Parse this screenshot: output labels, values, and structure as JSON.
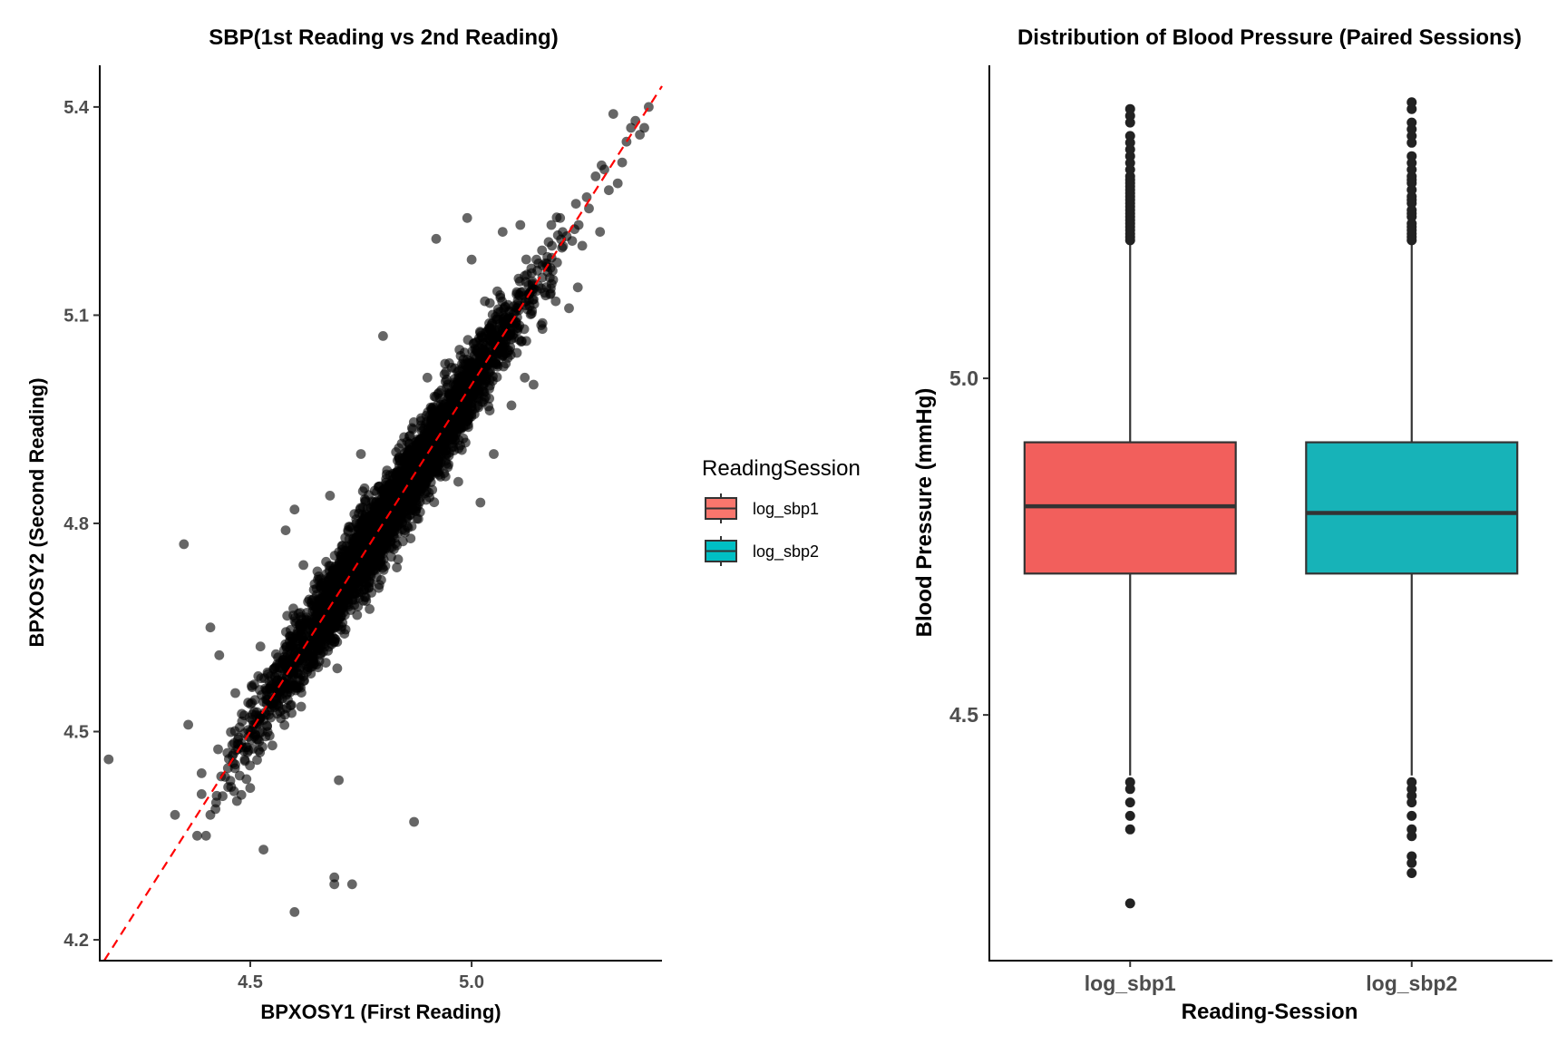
{
  "chart_data": [
    {
      "type": "scatter",
      "title": "SBP(1st Reading vs 2nd Reading)",
      "xlabel": "BPXOSY1 (First Reading)",
      "ylabel": "BPXOSY2 (Second Reading)",
      "xlim": [
        4.16,
        5.43
      ],
      "ylim": [
        4.17,
        5.46
      ],
      "xticks": [
        4.5,
        5.0
      ],
      "xtick_labels": [
        "4.5",
        "5.0"
      ],
      "yticks": [
        4.2,
        4.5,
        4.8,
        5.1,
        5.4
      ],
      "ytick_labels": [
        "4.2",
        "4.5",
        "4.8",
        "5.1",
        "5.4"
      ],
      "reference_line": {
        "style": "dashed",
        "color": "#ff0000",
        "slope": 1,
        "intercept": 0
      },
      "point_color": "#000000",
      "point_alpha": 0.6,
      "grid": false,
      "bulk": {
        "count": 3600,
        "x_range": [
          4.42,
          5.3
        ],
        "x_center": 4.82,
        "x_sd": 0.15,
        "residual_sd": 0.028
      },
      "points": [
        [
          4.18,
          4.46
        ],
        [
          4.33,
          4.38
        ],
        [
          4.35,
          4.77
        ],
        [
          4.38,
          4.35
        ],
        [
          4.39,
          4.41
        ],
        [
          4.4,
          4.35
        ],
        [
          4.41,
          4.38
        ],
        [
          4.39,
          4.44
        ],
        [
          4.41,
          4.65
        ],
        [
          4.43,
          4.61
        ],
        [
          4.36,
          4.51
        ],
        [
          4.45,
          4.42
        ],
        [
          4.47,
          4.4
        ],
        [
          4.53,
          4.33
        ],
        [
          4.6,
          4.24
        ],
        [
          4.69,
          4.29
        ],
        [
          4.69,
          4.28
        ],
        [
          4.73,
          4.28
        ],
        [
          4.7,
          4.43
        ],
        [
          4.87,
          4.37
        ],
        [
          4.6,
          4.82
        ],
        [
          4.58,
          4.79
        ],
        [
          4.68,
          4.84
        ],
        [
          4.76,
          4.81
        ],
        [
          4.8,
          5.07
        ],
        [
          4.83,
          4.87
        ],
        [
          4.92,
          4.93
        ],
        [
          4.94,
          5.03
        ],
        [
          4.9,
          5.01
        ],
        [
          4.97,
          4.86
        ],
        [
          5.04,
          4.98
        ],
        [
          5.05,
          4.9
        ],
        [
          5.02,
          4.83
        ],
        [
          5.09,
          4.97
        ],
        [
          5.14,
          5.0
        ],
        [
          5.12,
          5.01
        ],
        [
          5.16,
          5.08
        ],
        [
          5.19,
          5.12
        ],
        [
          5.22,
          5.11
        ],
        [
          5.24,
          5.14
        ],
        [
          5.17,
          5.17
        ],
        [
          5.0,
          5.18
        ],
        [
          4.99,
          5.24
        ],
        [
          4.92,
          5.21
        ],
        [
          5.07,
          5.22
        ],
        [
          5.11,
          5.23
        ],
        [
          5.18,
          5.23
        ],
        [
          5.2,
          5.24
        ],
        [
          5.25,
          5.2
        ],
        [
          5.29,
          5.22
        ],
        [
          5.33,
          5.29
        ],
        [
          5.26,
          5.27
        ],
        [
          5.28,
          5.3
        ],
        [
          5.31,
          5.28
        ],
        [
          5.34,
          5.32
        ],
        [
          5.35,
          5.35
        ],
        [
          5.37,
          5.38
        ],
        [
          5.38,
          5.36
        ],
        [
          5.39,
          5.37
        ],
        [
          5.32,
          5.39
        ],
        [
          5.4,
          5.4
        ],
        [
          5.36,
          5.37
        ],
        [
          5.3,
          5.31
        ],
        [
          4.62,
          4.74
        ],
        [
          4.66,
          4.69
        ],
        [
          4.75,
          4.9
        ],
        [
          4.98,
          4.98
        ],
        [
          5.07,
          5.06
        ],
        [
          5.03,
          5.12
        ],
        [
          4.55,
          4.48
        ]
      ]
    },
    {
      "type": "box",
      "title": "Distribution of Blood Pressure (Paired Sessions)",
      "xlabel": "Reading-Session",
      "ylabel": "Blood Pressure (mmHg)",
      "ylim": [
        4.135,
        5.465
      ],
      "yticks": [
        4.5,
        5.0
      ],
      "ytick_labels": [
        "4.5",
        "5.0"
      ],
      "categories": [
        "log_sbp1",
        "log_sbp2"
      ],
      "grid": false,
      "legend": {
        "title": "ReadingSession",
        "position": "between panels, center",
        "entries": [
          {
            "label": "log_sbp1",
            "color": "#f8766d"
          },
          {
            "label": "log_sbp2",
            "color": "#00bfc4"
          }
        ]
      },
      "series": [
        {
          "name": "log_sbp1",
          "color": "#f8766d",
          "box_fill": "#f25f5c",
          "q1": 4.71,
          "median": 4.81,
          "q3": 4.905,
          "whisker_low": 4.41,
          "whisker_high": 5.2,
          "outliers": [
            5.4,
            5.39,
            5.38,
            5.36,
            5.35,
            5.34,
            5.33,
            5.32,
            5.31,
            5.3,
            5.295,
            5.29,
            5.285,
            5.28,
            5.275,
            5.27,
            5.265,
            5.26,
            5.255,
            5.25,
            5.245,
            5.24,
            5.235,
            5.23,
            5.225,
            5.22,
            5.215,
            5.21,
            5.205,
            4.4,
            4.39,
            4.37,
            4.35,
            4.33,
            4.22
          ]
        },
        {
          "name": "log_sbp2",
          "color": "#00bfc4",
          "box_fill": "#17b3b8",
          "q1": 4.71,
          "median": 4.8,
          "q3": 4.905,
          "whisker_low": 4.41,
          "whisker_high": 5.2,
          "outliers": [
            5.41,
            5.4,
            5.38,
            5.37,
            5.36,
            5.35,
            5.33,
            5.32,
            5.31,
            5.3,
            5.295,
            5.29,
            5.28,
            5.27,
            5.265,
            5.26,
            5.25,
            5.245,
            5.24,
            5.23,
            5.225,
            5.22,
            5.215,
            5.21,
            5.205,
            4.4,
            4.39,
            4.38,
            4.37,
            4.35,
            4.33,
            4.32,
            4.29,
            4.28,
            4.265
          ]
        }
      ]
    }
  ]
}
